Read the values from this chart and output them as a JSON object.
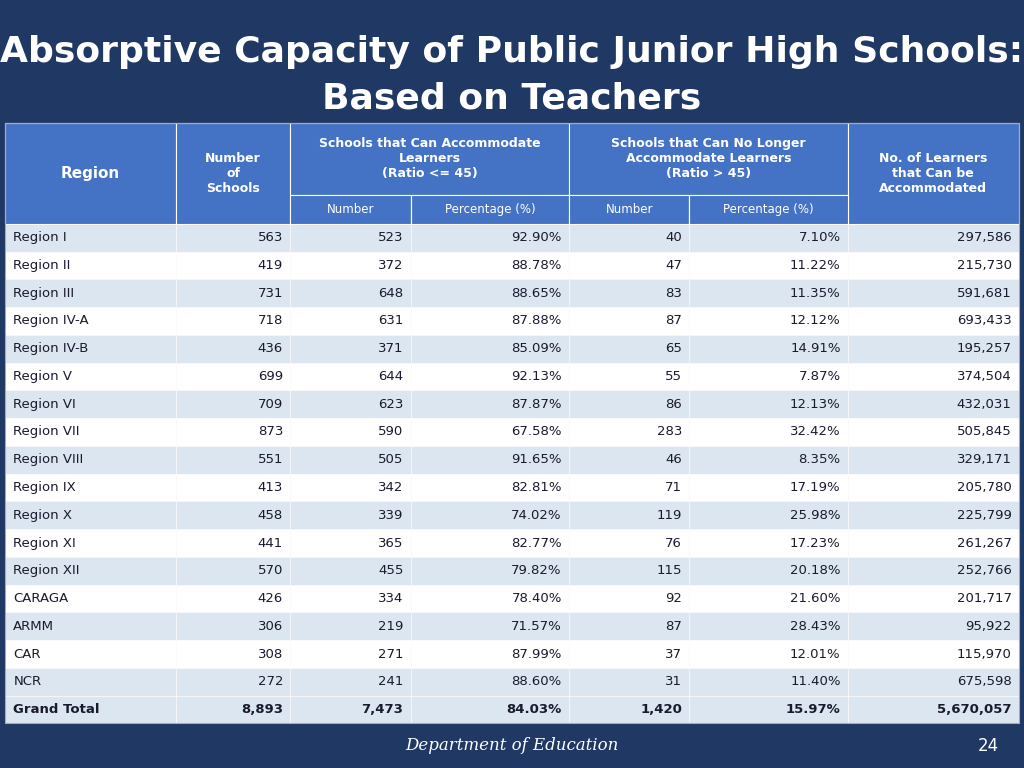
{
  "title_line1": "Absorptive Capacity of Public Junior High Schools:",
  "title_line2": "Based on Teachers",
  "title_bg": "#1f3864",
  "title_color": "#ffffff",
  "header_bg": "#4472c4",
  "header_color": "#ffffff",
  "row_bg_odd": "#dce6f1",
  "row_bg_even": "#ffffff",
  "footer_bg": "#1f3864",
  "footer_color": "#ffffff",
  "footer_text": "Department of Education",
  "footer_page": "24",
  "rows": [
    [
      "Region I",
      "563",
      "523",
      "92.90%",
      "40",
      "7.10%",
      "297,586"
    ],
    [
      "Region II",
      "419",
      "372",
      "88.78%",
      "47",
      "11.22%",
      "215,730"
    ],
    [
      "Region III",
      "731",
      "648",
      "88.65%",
      "83",
      "11.35%",
      "591,681"
    ],
    [
      "Region IV-A",
      "718",
      "631",
      "87.88%",
      "87",
      "12.12%",
      "693,433"
    ],
    [
      "Region IV-B",
      "436",
      "371",
      "85.09%",
      "65",
      "14.91%",
      "195,257"
    ],
    [
      "Region V",
      "699",
      "644",
      "92.13%",
      "55",
      "7.87%",
      "374,504"
    ],
    [
      "Region VI",
      "709",
      "623",
      "87.87%",
      "86",
      "12.13%",
      "432,031"
    ],
    [
      "Region VII",
      "873",
      "590",
      "67.58%",
      "283",
      "32.42%",
      "505,845"
    ],
    [
      "Region VIII",
      "551",
      "505",
      "91.65%",
      "46",
      "8.35%",
      "329,171"
    ],
    [
      "Region IX",
      "413",
      "342",
      "82.81%",
      "71",
      "17.19%",
      "205,780"
    ],
    [
      "Region X",
      "458",
      "339",
      "74.02%",
      "119",
      "25.98%",
      "225,799"
    ],
    [
      "Region XI",
      "441",
      "365",
      "82.77%",
      "76",
      "17.23%",
      "261,267"
    ],
    [
      "Region XII",
      "570",
      "455",
      "79.82%",
      "115",
      "20.18%",
      "252,766"
    ],
    [
      "CARAGA",
      "426",
      "334",
      "78.40%",
      "92",
      "21.60%",
      "201,717"
    ],
    [
      "ARMM",
      "306",
      "219",
      "71.57%",
      "87",
      "28.43%",
      "95,922"
    ],
    [
      "CAR",
      "308",
      "271",
      "87.99%",
      "37",
      "12.01%",
      "115,970"
    ],
    [
      "NCR",
      "272",
      "241",
      "88.60%",
      "31",
      "11.40%",
      "675,598"
    ]
  ],
  "grand_total": [
    "Grand Total",
    "8,893",
    "7,473",
    "84.03%",
    "1,420",
    "15.97%",
    "5,670,057"
  ],
  "col_widths_rel": [
    1.35,
    0.9,
    0.95,
    1.25,
    0.95,
    1.25,
    1.35
  ]
}
